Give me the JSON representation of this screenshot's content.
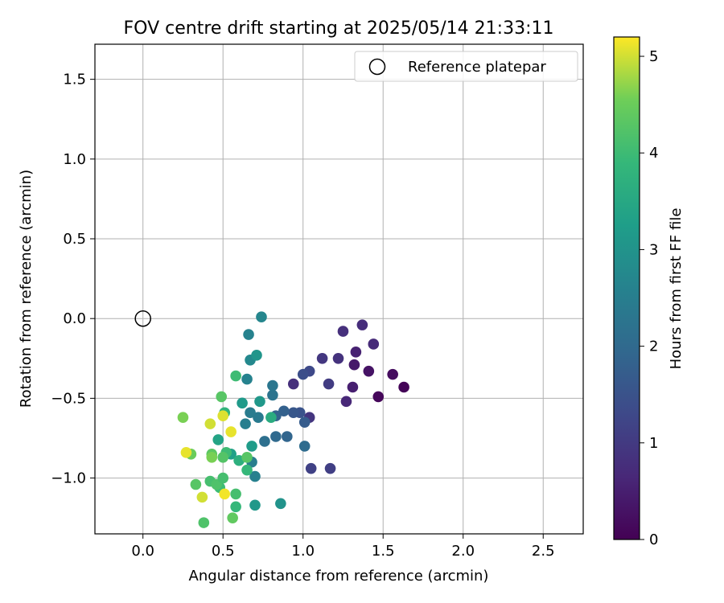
{
  "chart_data": {
    "type": "scatter",
    "title": "FOV centre drift starting at 2025/05/14 21:33:11",
    "xlabel": "Angular distance from reference (arcmin)",
    "ylabel": "Rotation from reference (arcmin)",
    "xlim": [
      -0.3,
      2.75
    ],
    "ylim": [
      -1.35,
      1.72
    ],
    "xticks": [
      0.0,
      0.5,
      1.0,
      1.5,
      2.0,
      2.5
    ],
    "xtick_labels": [
      "0.0",
      "0.5",
      "1.0",
      "1.5",
      "2.0",
      "2.5"
    ],
    "yticks": [
      1.5,
      1.0,
      0.5,
      0.0,
      -0.5,
      -1.0
    ],
    "ytick_labels": [
      "1.5",
      "1.0",
      "0.5",
      "0.0",
      "−0.5",
      "−1.0"
    ],
    "grid": true,
    "legend": {
      "position": "upper-right",
      "entries": [
        "Reference platepar"
      ]
    },
    "reference_point": {
      "x": 0.0,
      "y": 0.0
    },
    "colorbar": {
      "label": "Hours from first FF file",
      "colormap": "viridis",
      "range": [
        0,
        5.2
      ],
      "ticks": [
        0,
        1,
        2,
        3,
        4,
        5
      ],
      "tick_labels": [
        "0",
        "1",
        "2",
        "3",
        "4",
        "5"
      ]
    },
    "points": [
      {
        "x": 1.63,
        "y": -0.43,
        "t": 0.05
      },
      {
        "x": 1.47,
        "y": -0.49,
        "t": 0.1
      },
      {
        "x": 1.56,
        "y": -0.35,
        "t": 0.2
      },
      {
        "x": 1.41,
        "y": -0.33,
        "t": 0.3
      },
      {
        "x": 1.32,
        "y": -0.29,
        "t": 0.4
      },
      {
        "x": 1.31,
        "y": -0.43,
        "t": 0.5
      },
      {
        "x": 1.33,
        "y": -0.21,
        "t": 0.55
      },
      {
        "x": 1.27,
        "y": -0.52,
        "t": 0.65
      },
      {
        "x": 1.44,
        "y": -0.16,
        "t": 0.7
      },
      {
        "x": 1.37,
        "y": -0.04,
        "t": 0.75
      },
      {
        "x": 1.25,
        "y": -0.08,
        "t": 0.8
      },
      {
        "x": 1.22,
        "y": -0.25,
        "t": 0.85
      },
      {
        "x": 1.12,
        "y": -0.25,
        "t": 0.95
      },
      {
        "x": 1.16,
        "y": -0.41,
        "t": 1.05
      },
      {
        "x": 0.94,
        "y": -0.41,
        "t": 0.8
      },
      {
        "x": 1.04,
        "y": -0.62,
        "t": 0.9
      },
      {
        "x": 1.17,
        "y": -0.94,
        "t": 1.1
      },
      {
        "x": 1.05,
        "y": -0.94,
        "t": 1.15
      },
      {
        "x": 1.04,
        "y": -0.33,
        "t": 1.3
      },
      {
        "x": 1.0,
        "y": -0.35,
        "t": 1.4
      },
      {
        "x": 0.98,
        "y": -0.59,
        "t": 1.5
      },
      {
        "x": 0.94,
        "y": -0.59,
        "t": 1.6
      },
      {
        "x": 1.01,
        "y": -0.65,
        "t": 1.7
      },
      {
        "x": 0.88,
        "y": -0.58,
        "t": 1.8
      },
      {
        "x": 0.83,
        "y": -0.61,
        "t": 1.85
      },
      {
        "x": 0.9,
        "y": -0.74,
        "t": 1.9
      },
      {
        "x": 0.83,
        "y": -0.74,
        "t": 2.0
      },
      {
        "x": 1.01,
        "y": -0.8,
        "t": 2.05
      },
      {
        "x": 0.76,
        "y": -0.77,
        "t": 2.15
      },
      {
        "x": 0.81,
        "y": -0.48,
        "t": 2.25
      },
      {
        "x": 0.81,
        "y": -0.42,
        "t": 2.3
      },
      {
        "x": 0.72,
        "y": -0.62,
        "t": 2.4
      },
      {
        "x": 0.67,
        "y": -0.59,
        "t": 2.45
      },
      {
        "x": 0.64,
        "y": -0.66,
        "t": 2.5
      },
      {
        "x": 0.68,
        "y": -0.9,
        "t": 2.5
      },
      {
        "x": 0.7,
        "y": -0.99,
        "t": 2.55
      },
      {
        "x": 0.65,
        "y": -0.38,
        "t": 2.6
      },
      {
        "x": 0.66,
        "y": -0.1,
        "t": 2.6
      },
      {
        "x": 0.74,
        "y": 0.01,
        "t": 2.7
      },
      {
        "x": 0.67,
        "y": -0.26,
        "t": 2.75
      },
      {
        "x": 0.71,
        "y": -0.23,
        "t": 3.05
      },
      {
        "x": 0.73,
        "y": -0.52,
        "t": 3.1
      },
      {
        "x": 0.62,
        "y": -0.53,
        "t": 3.15
      },
      {
        "x": 0.86,
        "y": -1.16,
        "t": 3.0
      },
      {
        "x": 0.7,
        "y": -1.17,
        "t": 3.1
      },
      {
        "x": 0.68,
        "y": -0.8,
        "t": 3.2
      },
      {
        "x": 0.8,
        "y": -0.62,
        "t": 3.6
      },
      {
        "x": 0.55,
        "y": -0.85,
        "t": 3.3
      },
      {
        "x": 0.47,
        "y": -0.76,
        "t": 3.4
      },
      {
        "x": 0.6,
        "y": -0.89,
        "t": 3.7
      },
      {
        "x": 0.65,
        "y": -0.95,
        "t": 3.9
      },
      {
        "x": 0.51,
        "y": -0.59,
        "t": 3.8
      },
      {
        "x": 0.52,
        "y": -0.84,
        "t": 4.0
      },
      {
        "x": 0.58,
        "y": -1.18,
        "t": 3.9
      },
      {
        "x": 0.58,
        "y": -1.1,
        "t": 4.1
      },
      {
        "x": 0.58,
        "y": -0.36,
        "t": 4.0
      },
      {
        "x": 0.48,
        "y": -1.06,
        "t": 4.0
      },
      {
        "x": 0.42,
        "y": -1.02,
        "t": 4.1
      },
      {
        "x": 0.46,
        "y": -1.04,
        "t": 4.2
      },
      {
        "x": 0.5,
        "y": -1.0,
        "t": 4.1
      },
      {
        "x": 0.65,
        "y": -0.87,
        "t": 4.3
      },
      {
        "x": 0.5,
        "y": -0.87,
        "t": 4.25
      },
      {
        "x": 0.43,
        "y": -0.85,
        "t": 4.35
      },
      {
        "x": 0.38,
        "y": -1.28,
        "t": 4.2
      },
      {
        "x": 0.33,
        "y": -1.04,
        "t": 4.3
      },
      {
        "x": 0.56,
        "y": -1.25,
        "t": 4.4
      },
      {
        "x": 0.49,
        "y": -0.49,
        "t": 4.3
      },
      {
        "x": 0.25,
        "y": -0.62,
        "t": 4.6
      },
      {
        "x": 0.3,
        "y": -0.85,
        "t": 4.5
      },
      {
        "x": 0.43,
        "y": -0.87,
        "t": 4.6
      },
      {
        "x": 0.37,
        "y": -1.12,
        "t": 5.0
      },
      {
        "x": 0.27,
        "y": -0.84,
        "t": 5.1
      },
      {
        "x": 0.42,
        "y": -0.66,
        "t": 5.0
      },
      {
        "x": 0.5,
        "y": -0.61,
        "t": 5.05
      },
      {
        "x": 0.55,
        "y": -0.71,
        "t": 5.1
      },
      {
        "x": 0.51,
        "y": -1.1,
        "t": 5.15
      }
    ]
  }
}
